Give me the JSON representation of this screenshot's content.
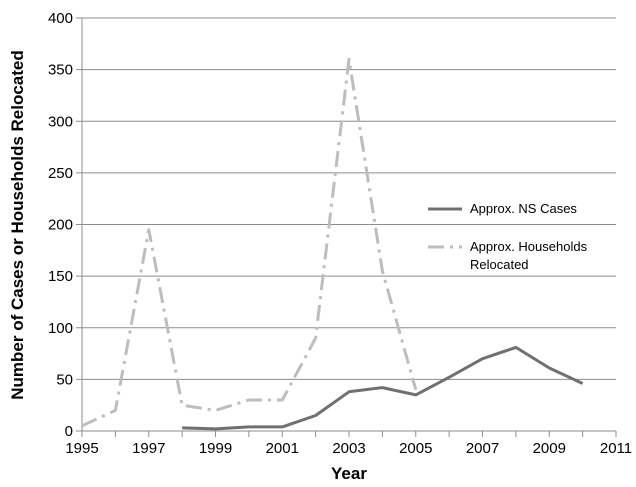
{
  "chart_data": {
    "type": "line",
    "title": "",
    "xlabel": "Year",
    "ylabel": "Number of Cases or Households Relocated",
    "xlim": [
      1995,
      2011
    ],
    "ylim": [
      0,
      400
    ],
    "x_ticks": [
      1995,
      1997,
      1999,
      2001,
      2003,
      2005,
      2007,
      2009,
      2011
    ],
    "y_ticks": [
      0,
      50,
      100,
      150,
      200,
      250,
      300,
      350,
      400
    ],
    "grid": true,
    "legend_position": "right",
    "series": [
      {
        "name": "Approx. NS Cases",
        "color": "#707070",
        "style": "solid",
        "x": [
          1998,
          1999,
          2000,
          2001,
          2002,
          2003,
          2004,
          2005,
          2006,
          2007,
          2008,
          2009,
          2010
        ],
        "values": [
          3,
          2,
          4,
          4,
          15,
          38,
          42,
          35,
          52,
          70,
          81,
          61,
          46
        ]
      },
      {
        "name": "Approx. Households Relocated",
        "name_lines": [
          "Approx. Households",
          "Relocated"
        ],
        "color": "#bdbdbd",
        "style": "dash-dot",
        "x": [
          1995,
          1996,
          1997,
          1998,
          1999,
          2000,
          2001,
          2002,
          2003,
          2004,
          2005
        ],
        "values": [
          5,
          20,
          195,
          25,
          20,
          30,
          30,
          90,
          360,
          155,
          40
        ]
      }
    ]
  }
}
